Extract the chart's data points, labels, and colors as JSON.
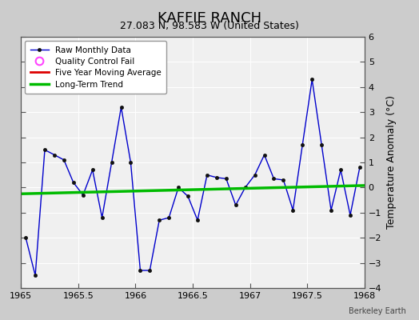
{
  "title": "KAFFIE RANCH",
  "subtitle": "27.083 N, 98.583 W (United States)",
  "credit": "Berkeley Earth",
  "x_start": 1965.0,
  "x_end": 1968.0,
  "ylim": [
    -4,
    6
  ],
  "yticks": [
    -4,
    -3,
    -2,
    -1,
    0,
    1,
    2,
    3,
    4,
    5,
    6
  ],
  "xticks": [
    1965,
    1965.5,
    1966,
    1966.5,
    1967,
    1967.5,
    1968
  ],
  "ylabel": "Temperature Anomaly (°C)",
  "bg_color": "#cccccc",
  "plot_bg_color": "#f0f0f0",
  "raw_x": [
    1965.042,
    1965.125,
    1965.208,
    1965.292,
    1965.375,
    1965.458,
    1965.542,
    1965.625,
    1965.708,
    1965.792,
    1965.875,
    1965.958,
    1966.042,
    1966.125,
    1966.208,
    1966.292,
    1966.375,
    1966.458,
    1966.542,
    1966.625,
    1966.708,
    1966.792,
    1966.875,
    1966.958,
    1967.042,
    1967.125,
    1967.208,
    1967.292,
    1967.375,
    1967.458,
    1967.542,
    1967.625,
    1967.708,
    1967.792,
    1967.875,
    1967.958
  ],
  "raw_y": [
    -2.0,
    -3.5,
    1.5,
    1.3,
    1.1,
    0.2,
    -0.3,
    0.7,
    -1.2,
    1.0,
    3.2,
    1.0,
    -3.3,
    -3.3,
    -1.3,
    -1.2,
    0.0,
    -0.35,
    -1.3,
    0.5,
    0.4,
    0.35,
    -0.7,
    0.0,
    0.5,
    1.3,
    0.35,
    0.3,
    -0.9,
    1.7,
    4.3,
    1.7,
    -0.9,
    0.7,
    -1.1,
    0.8
  ],
  "trend_x": [
    1965.0,
    1968.0
  ],
  "trend_y": [
    -0.25,
    0.08
  ],
  "raw_color": "#0000cc",
  "trend_color": "#00bb00",
  "ma_color": "#dd0000",
  "qc_color": "#ff44ff",
  "grid_color": "#ffffff",
  "spine_color": "#555555",
  "legend_loc": "upper left",
  "title_fontsize": 13,
  "subtitle_fontsize": 9,
  "tick_labelsize": 8,
  "ylabel_fontsize": 9
}
